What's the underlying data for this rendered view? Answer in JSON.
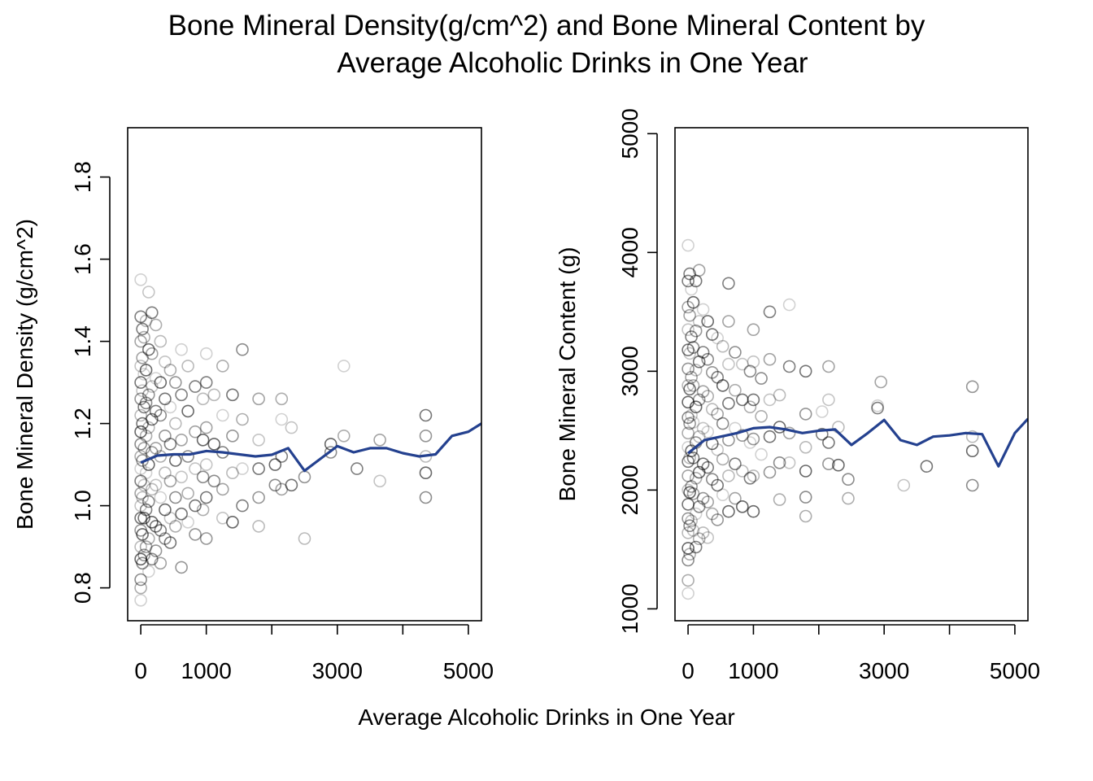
{
  "figure": {
    "title_line1": "Bone Mineral Density(g/cm^2) and Bone Mineral Content by",
    "title_line2": "Average Alcoholic Drinks in One Year",
    "xlabel": "Average Alcoholic Drinks in One Year"
  },
  "colors": {
    "point": "#000000",
    "smooth_line": "#24418f",
    "axis": "#000000"
  },
  "chart_data": [
    {
      "type": "scatter",
      "title": "",
      "xlabel": "Average Alcoholic Drinks in One Year",
      "ylabel": "Bone Mineral Density (g/cm^2)",
      "xlim": [
        -200,
        5200
      ],
      "ylim": [
        0.72,
        1.92
      ],
      "xticks": [
        0,
        1000,
        2000,
        3000,
        4000,
        5000
      ],
      "xtick_labels": [
        "0",
        "1000",
        "",
        "3000",
        "",
        "5000"
      ],
      "yticks": [
        0.8,
        1.0,
        1.2,
        1.4,
        1.6,
        1.8
      ],
      "ytick_labels": [
        "0.8",
        "1.0",
        "1.2",
        "1.4",
        "1.6",
        "1.8"
      ],
      "grid": false,
      "legend": "none",
      "marker": "open circle, semi-transparent",
      "points": [
        [
          0,
          1.55
        ],
        [
          0,
          1.46
        ],
        [
          0,
          1.4
        ],
        [
          0,
          1.34
        ],
        [
          0,
          1.3
        ],
        [
          0,
          1.26
        ],
        [
          0,
          1.22
        ],
        [
          0,
          1.18
        ],
        [
          0,
          1.15
        ],
        [
          0,
          1.12
        ],
        [
          0,
          1.09
        ],
        [
          0,
          1.06
        ],
        [
          0,
          1.03
        ],
        [
          0,
          1.0
        ],
        [
          0,
          0.97
        ],
        [
          0,
          0.94
        ],
        [
          0,
          0.9
        ],
        [
          0,
          0.87
        ],
        [
          0,
          0.82
        ],
        [
          0,
          0.8
        ],
        [
          0,
          0.77
        ],
        [
          25,
          1.43
        ],
        [
          25,
          1.36
        ],
        [
          25,
          1.28
        ],
        [
          25,
          1.2
        ],
        [
          25,
          1.11
        ],
        [
          25,
          1.02
        ],
        [
          25,
          0.93
        ],
        [
          25,
          0.86
        ],
        [
          50,
          1.41
        ],
        [
          50,
          1.32
        ],
        [
          50,
          1.24
        ],
        [
          50,
          1.14
        ],
        [
          50,
          1.05
        ],
        [
          50,
          0.97
        ],
        [
          50,
          0.88
        ],
        [
          80,
          1.45
        ],
        [
          80,
          1.33
        ],
        [
          80,
          1.25
        ],
        [
          80,
          1.17
        ],
        [
          80,
          1.08
        ],
        [
          80,
          0.99
        ],
        [
          80,
          0.9
        ],
        [
          120,
          1.52
        ],
        [
          120,
          1.38
        ],
        [
          120,
          1.27
        ],
        [
          120,
          1.19
        ],
        [
          120,
          1.1
        ],
        [
          120,
          1.01
        ],
        [
          120,
          0.92
        ],
        [
          120,
          0.84
        ],
        [
          170,
          1.47
        ],
        [
          170,
          1.37
        ],
        [
          170,
          1.29
        ],
        [
          170,
          1.21
        ],
        [
          170,
          1.13
        ],
        [
          170,
          1.04
        ],
        [
          170,
          0.96
        ],
        [
          170,
          0.87
        ],
        [
          230,
          1.44
        ],
        [
          230,
          1.31
        ],
        [
          230,
          1.23
        ],
        [
          230,
          1.14
        ],
        [
          230,
          1.05
        ],
        [
          230,
          0.95
        ],
        [
          230,
          0.89
        ],
        [
          300,
          1.4
        ],
        [
          300,
          1.3
        ],
        [
          300,
          1.22
        ],
        [
          300,
          1.12
        ],
        [
          300,
          1.02
        ],
        [
          300,
          0.94
        ],
        [
          300,
          0.86
        ],
        [
          370,
          1.35
        ],
        [
          370,
          1.26
        ],
        [
          370,
          1.17
        ],
        [
          370,
          1.08
        ],
        [
          370,
          0.99
        ],
        [
          370,
          0.92
        ],
        [
          450,
          1.33
        ],
        [
          450,
          1.24
        ],
        [
          450,
          1.15
        ],
        [
          450,
          1.06
        ],
        [
          450,
          0.97
        ],
        [
          450,
          0.91
        ],
        [
          530,
          1.3
        ],
        [
          530,
          1.2
        ],
        [
          530,
          1.11
        ],
        [
          530,
          1.02
        ],
        [
          530,
          0.95
        ],
        [
          620,
          1.38
        ],
        [
          620,
          1.27
        ],
        [
          620,
          1.16
        ],
        [
          620,
          1.07
        ],
        [
          620,
          0.98
        ],
        [
          620,
          0.85
        ],
        [
          720,
          1.34
        ],
        [
          720,
          1.23
        ],
        [
          720,
          1.12
        ],
        [
          720,
          1.03
        ],
        [
          720,
          0.96
        ],
        [
          830,
          1.29
        ],
        [
          830,
          1.18
        ],
        [
          830,
          1.09
        ],
        [
          830,
          1.0
        ],
        [
          830,
          0.93
        ],
        [
          950,
          1.26
        ],
        [
          950,
          1.16
        ],
        [
          950,
          1.07
        ],
        [
          950,
          0.99
        ],
        [
          1000,
          1.37
        ],
        [
          1000,
          1.3
        ],
        [
          1000,
          1.19
        ],
        [
          1000,
          1.1
        ],
        [
          1000,
          1.02
        ],
        [
          1000,
          0.92
        ],
        [
          1120,
          1.27
        ],
        [
          1120,
          1.15
        ],
        [
          1120,
          1.06
        ],
        [
          1250,
          1.34
        ],
        [
          1250,
          1.22
        ],
        [
          1250,
          1.13
        ],
        [
          1250,
          1.04
        ],
        [
          1250,
          0.97
        ],
        [
          1400,
          1.27
        ],
        [
          1400,
          1.17
        ],
        [
          1400,
          1.08
        ],
        [
          1400,
          0.96
        ],
        [
          1550,
          1.38
        ],
        [
          1550,
          1.21
        ],
        [
          1550,
          1.09
        ],
        [
          1550,
          1.0
        ],
        [
          1800,
          1.26
        ],
        [
          1800,
          1.16
        ],
        [
          1800,
          1.09
        ],
        [
          1800,
          1.02
        ],
        [
          1800,
          0.95
        ],
        [
          2050,
          1.1
        ],
        [
          2050,
          1.05
        ],
        [
          2150,
          1.26
        ],
        [
          2150,
          1.21
        ],
        [
          2150,
          1.12
        ],
        [
          2150,
          1.04
        ],
        [
          2300,
          1.19
        ],
        [
          2300,
          1.05
        ],
        [
          2500,
          1.07
        ],
        [
          2500,
          0.92
        ],
        [
          2900,
          1.15
        ],
        [
          2900,
          1.13
        ],
        [
          3100,
          1.17
        ],
        [
          3100,
          1.34
        ],
        [
          3300,
          1.09
        ],
        [
          3650,
          1.16
        ],
        [
          3650,
          1.06
        ],
        [
          4350,
          1.22
        ],
        [
          4350,
          1.17
        ],
        [
          4350,
          1.12
        ],
        [
          4350,
          1.08
        ],
        [
          4350,
          1.02
        ]
      ],
      "smooth_line": {
        "x": [
          0,
          250,
          500,
          750,
          1000,
          1250,
          1500,
          1750,
          2000,
          2250,
          2500,
          2750,
          3000,
          3250,
          3500,
          3750,
          4000,
          4250,
          4500,
          4750,
          5000,
          5200
        ],
        "y": [
          1.105,
          1.122,
          1.125,
          1.125,
          1.133,
          1.13,
          1.125,
          1.12,
          1.124,
          1.14,
          1.085,
          1.115,
          1.145,
          1.13,
          1.14,
          1.14,
          1.128,
          1.12,
          1.125,
          1.17,
          1.18,
          1.2
        ]
      }
    },
    {
      "type": "scatter",
      "title": "",
      "xlabel": "Average Alcoholic Drinks in One Year",
      "ylabel": "Bone Mineral Content (g)",
      "xlim": [
        -200,
        5200
      ],
      "ylim": [
        900,
        5050
      ],
      "xticks": [
        0,
        1000,
        2000,
        3000,
        4000,
        5000
      ],
      "xtick_labels": [
        "0",
        "1000",
        "",
        "3000",
        "",
        "5000"
      ],
      "yticks": [
        1000,
        2000,
        3000,
        4000,
        5000
      ],
      "ytick_labels": [
        "1000",
        "2000",
        "3000",
        "4000",
        "5000"
      ],
      "grid": false,
      "legend": "none",
      "marker": "open circle, semi-transparent",
      "points": [
        [
          0,
          4060
        ],
        [
          0,
          3760
        ],
        [
          0,
          3540
        ],
        [
          0,
          3350
        ],
        [
          0,
          3180
        ],
        [
          0,
          3020
        ],
        [
          0,
          2880
        ],
        [
          0,
          2740
        ],
        [
          0,
          2610
        ],
        [
          0,
          2480
        ],
        [
          0,
          2360
        ],
        [
          0,
          2240
        ],
        [
          0,
          2120
        ],
        [
          0,
          2000
        ],
        [
          0,
          1880
        ],
        [
          0,
          1760
        ],
        [
          0,
          1640
        ],
        [
          0,
          1510
        ],
        [
          0,
          1410
        ],
        [
          0,
          1240
        ],
        [
          0,
          1130
        ],
        [
          25,
          3820
        ],
        [
          25,
          3470
        ],
        [
          25,
          3150
        ],
        [
          25,
          2850
        ],
        [
          25,
          2560
        ],
        [
          25,
          2270
        ],
        [
          25,
          1980
        ],
        [
          25,
          1700
        ],
        [
          25,
          1460
        ],
        [
          50,
          3690
        ],
        [
          50,
          3290
        ],
        [
          50,
          2950
        ],
        [
          50,
          2630
        ],
        [
          50,
          2330
        ],
        [
          50,
          2030
        ],
        [
          50,
          1740
        ],
        [
          80,
          3580
        ],
        [
          80,
          3200
        ],
        [
          80,
          2880
        ],
        [
          80,
          2570
        ],
        [
          80,
          2270
        ],
        [
          80,
          1970
        ],
        [
          80,
          1660
        ],
        [
          120,
          3760
        ],
        [
          120,
          3340
        ],
        [
          120,
          3010
        ],
        [
          120,
          2700
        ],
        [
          120,
          2400
        ],
        [
          120,
          2100
        ],
        [
          120,
          1800
        ],
        [
          120,
          1520
        ],
        [
          170,
          3850
        ],
        [
          170,
          3420
        ],
        [
          170,
          3080
        ],
        [
          170,
          2760
        ],
        [
          170,
          2450
        ],
        [
          170,
          2150
        ],
        [
          170,
          1860
        ],
        [
          170,
          1590
        ],
        [
          230,
          3520
        ],
        [
          230,
          3160
        ],
        [
          230,
          2830
        ],
        [
          230,
          2520
        ],
        [
          230,
          2220
        ],
        [
          230,
          1930
        ],
        [
          230,
          1640
        ],
        [
          300,
          3420
        ],
        [
          300,
          3100
        ],
        [
          300,
          2790
        ],
        [
          300,
          2490
        ],
        [
          300,
          2190
        ],
        [
          300,
          1900
        ],
        [
          300,
          1600
        ],
        [
          370,
          3310
        ],
        [
          370,
          2990
        ],
        [
          370,
          2680
        ],
        [
          370,
          2390
        ],
        [
          370,
          2090
        ],
        [
          370,
          1800
        ],
        [
          450,
          3280
        ],
        [
          450,
          2950
        ],
        [
          450,
          2640
        ],
        [
          450,
          2340
        ],
        [
          450,
          2040
        ],
        [
          450,
          1750
        ],
        [
          530,
          3210
        ],
        [
          530,
          2880
        ],
        [
          530,
          2560
        ],
        [
          530,
          2260
        ],
        [
          530,
          1960
        ],
        [
          620,
          3740
        ],
        [
          620,
          3420
        ],
        [
          620,
          3060
        ],
        [
          620,
          2730
        ],
        [
          620,
          2420
        ],
        [
          620,
          2120
        ],
        [
          620,
          1820
        ],
        [
          720,
          3160
        ],
        [
          720,
          2840
        ],
        [
          720,
          2520
        ],
        [
          720,
          2220
        ],
        [
          720,
          1930
        ],
        [
          830,
          3060
        ],
        [
          830,
          2760
        ],
        [
          830,
          2460
        ],
        [
          830,
          2160
        ],
        [
          830,
          1860
        ],
        [
          950,
          3000
        ],
        [
          950,
          2700
        ],
        [
          950,
          2400
        ],
        [
          950,
          2100
        ],
        [
          1000,
          3350
        ],
        [
          1000,
          3080
        ],
        [
          1000,
          2760
        ],
        [
          1000,
          2430
        ],
        [
          1000,
          2120
        ],
        [
          1000,
          1820
        ],
        [
          1120,
          2940
        ],
        [
          1120,
          2620
        ],
        [
          1120,
          2300
        ],
        [
          1250,
          3500
        ],
        [
          1250,
          3100
        ],
        [
          1250,
          2760
        ],
        [
          1250,
          2450
        ],
        [
          1250,
          2150
        ],
        [
          1400,
          2800
        ],
        [
          1400,
          2530
        ],
        [
          1400,
          2230
        ],
        [
          1400,
          1920
        ],
        [
          1550,
          3560
        ],
        [
          1550,
          3040
        ],
        [
          1550,
          2480
        ],
        [
          1550,
          2230
        ],
        [
          1800,
          3000
        ],
        [
          1800,
          2640
        ],
        [
          1800,
          2360
        ],
        [
          1800,
          2160
        ],
        [
          1800,
          1940
        ],
        [
          1800,
          1780
        ],
        [
          2050,
          2660
        ],
        [
          2050,
          2470
        ],
        [
          2150,
          3040
        ],
        [
          2150,
          2760
        ],
        [
          2150,
          2400
        ],
        [
          2150,
          2220
        ],
        [
          2300,
          2530
        ],
        [
          2300,
          2210
        ],
        [
          2450,
          2090
        ],
        [
          2450,
          1930
        ],
        [
          2900,
          2710
        ],
        [
          2900,
          2690
        ],
        [
          2950,
          2910
        ],
        [
          3300,
          2040
        ],
        [
          3650,
          2200
        ],
        [
          4350,
          2870
        ],
        [
          4350,
          2450
        ],
        [
          4350,
          2330
        ],
        [
          4350,
          2040
        ]
      ],
      "smooth_line": {
        "x": [
          0,
          250,
          500,
          750,
          1000,
          1250,
          1500,
          1750,
          2000,
          2250,
          2500,
          2750,
          3000,
          3250,
          3500,
          3750,
          4000,
          4250,
          4500,
          4750,
          5000,
          5200
        ],
        "y": [
          2310,
          2420,
          2450,
          2480,
          2520,
          2530,
          2510,
          2480,
          2500,
          2510,
          2380,
          2480,
          2590,
          2420,
          2380,
          2450,
          2460,
          2480,
          2470,
          2200,
          2480,
          2600
        ]
      }
    }
  ]
}
